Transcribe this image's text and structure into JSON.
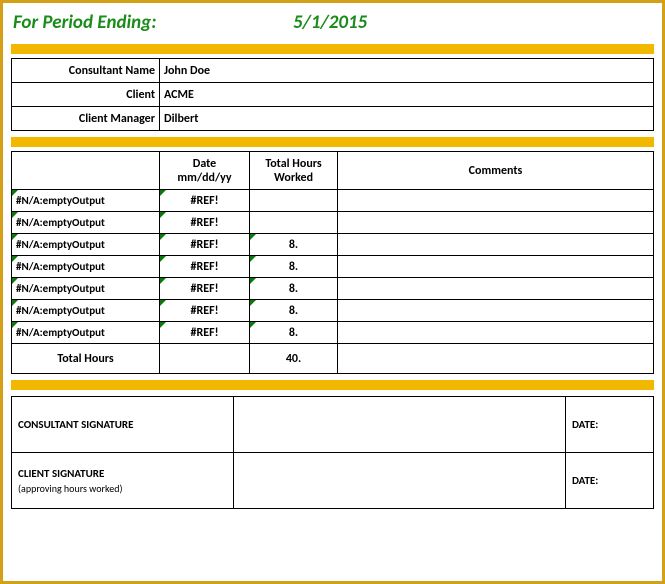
{
  "header": {
    "label": "For Period Ending:",
    "date": "5/1/2015",
    "text_color": "#1a8c1a"
  },
  "colors": {
    "gold": "#f2b800",
    "gold_border": "#d4a017",
    "err_marker": "#0a7a0a",
    "border": "#000000",
    "bg": "#ffffff"
  },
  "info": {
    "consultant_name_label": "Consultant Name",
    "consultant_name_value": "John Doe",
    "client_label": "Client",
    "client_value": "ACME",
    "client_manager_label": "Client Manager",
    "client_manager_value": "Dilbert"
  },
  "timesheet": {
    "columns": {
      "day": "",
      "date_line1": "Date",
      "date_line2": "mm/dd/yy",
      "hours_line1": "Total Hours",
      "hours_line2": "Worked",
      "comments": "Comments"
    },
    "rows": [
      {
        "day": "#N/A:emptyOutput",
        "date": "#REF!",
        "hours": "",
        "comments": ""
      },
      {
        "day": "#N/A:emptyOutput",
        "date": "#REF!",
        "hours": "",
        "comments": ""
      },
      {
        "day": "#N/A:emptyOutput",
        "date": "#REF!",
        "hours": "8.",
        "comments": ""
      },
      {
        "day": "#N/A:emptyOutput",
        "date": "#REF!",
        "hours": "8.",
        "comments": ""
      },
      {
        "day": "#N/A:emptyOutput",
        "date": "#REF!",
        "hours": "8.",
        "comments": ""
      },
      {
        "day": "#N/A:emptyOutput",
        "date": "#REF!",
        "hours": "8.",
        "comments": ""
      },
      {
        "day": "#N/A:emptyOutput",
        "date": "#REF!",
        "hours": "8.",
        "comments": ""
      }
    ],
    "total_label": "Total Hours",
    "total_value": "40."
  },
  "signatures": {
    "consultant_label": "CONSULTANT SIGNATURE",
    "client_label": "CLIENT SIGNATURE",
    "client_sub": "(approving hours worked)",
    "date_label": "DATE:"
  }
}
